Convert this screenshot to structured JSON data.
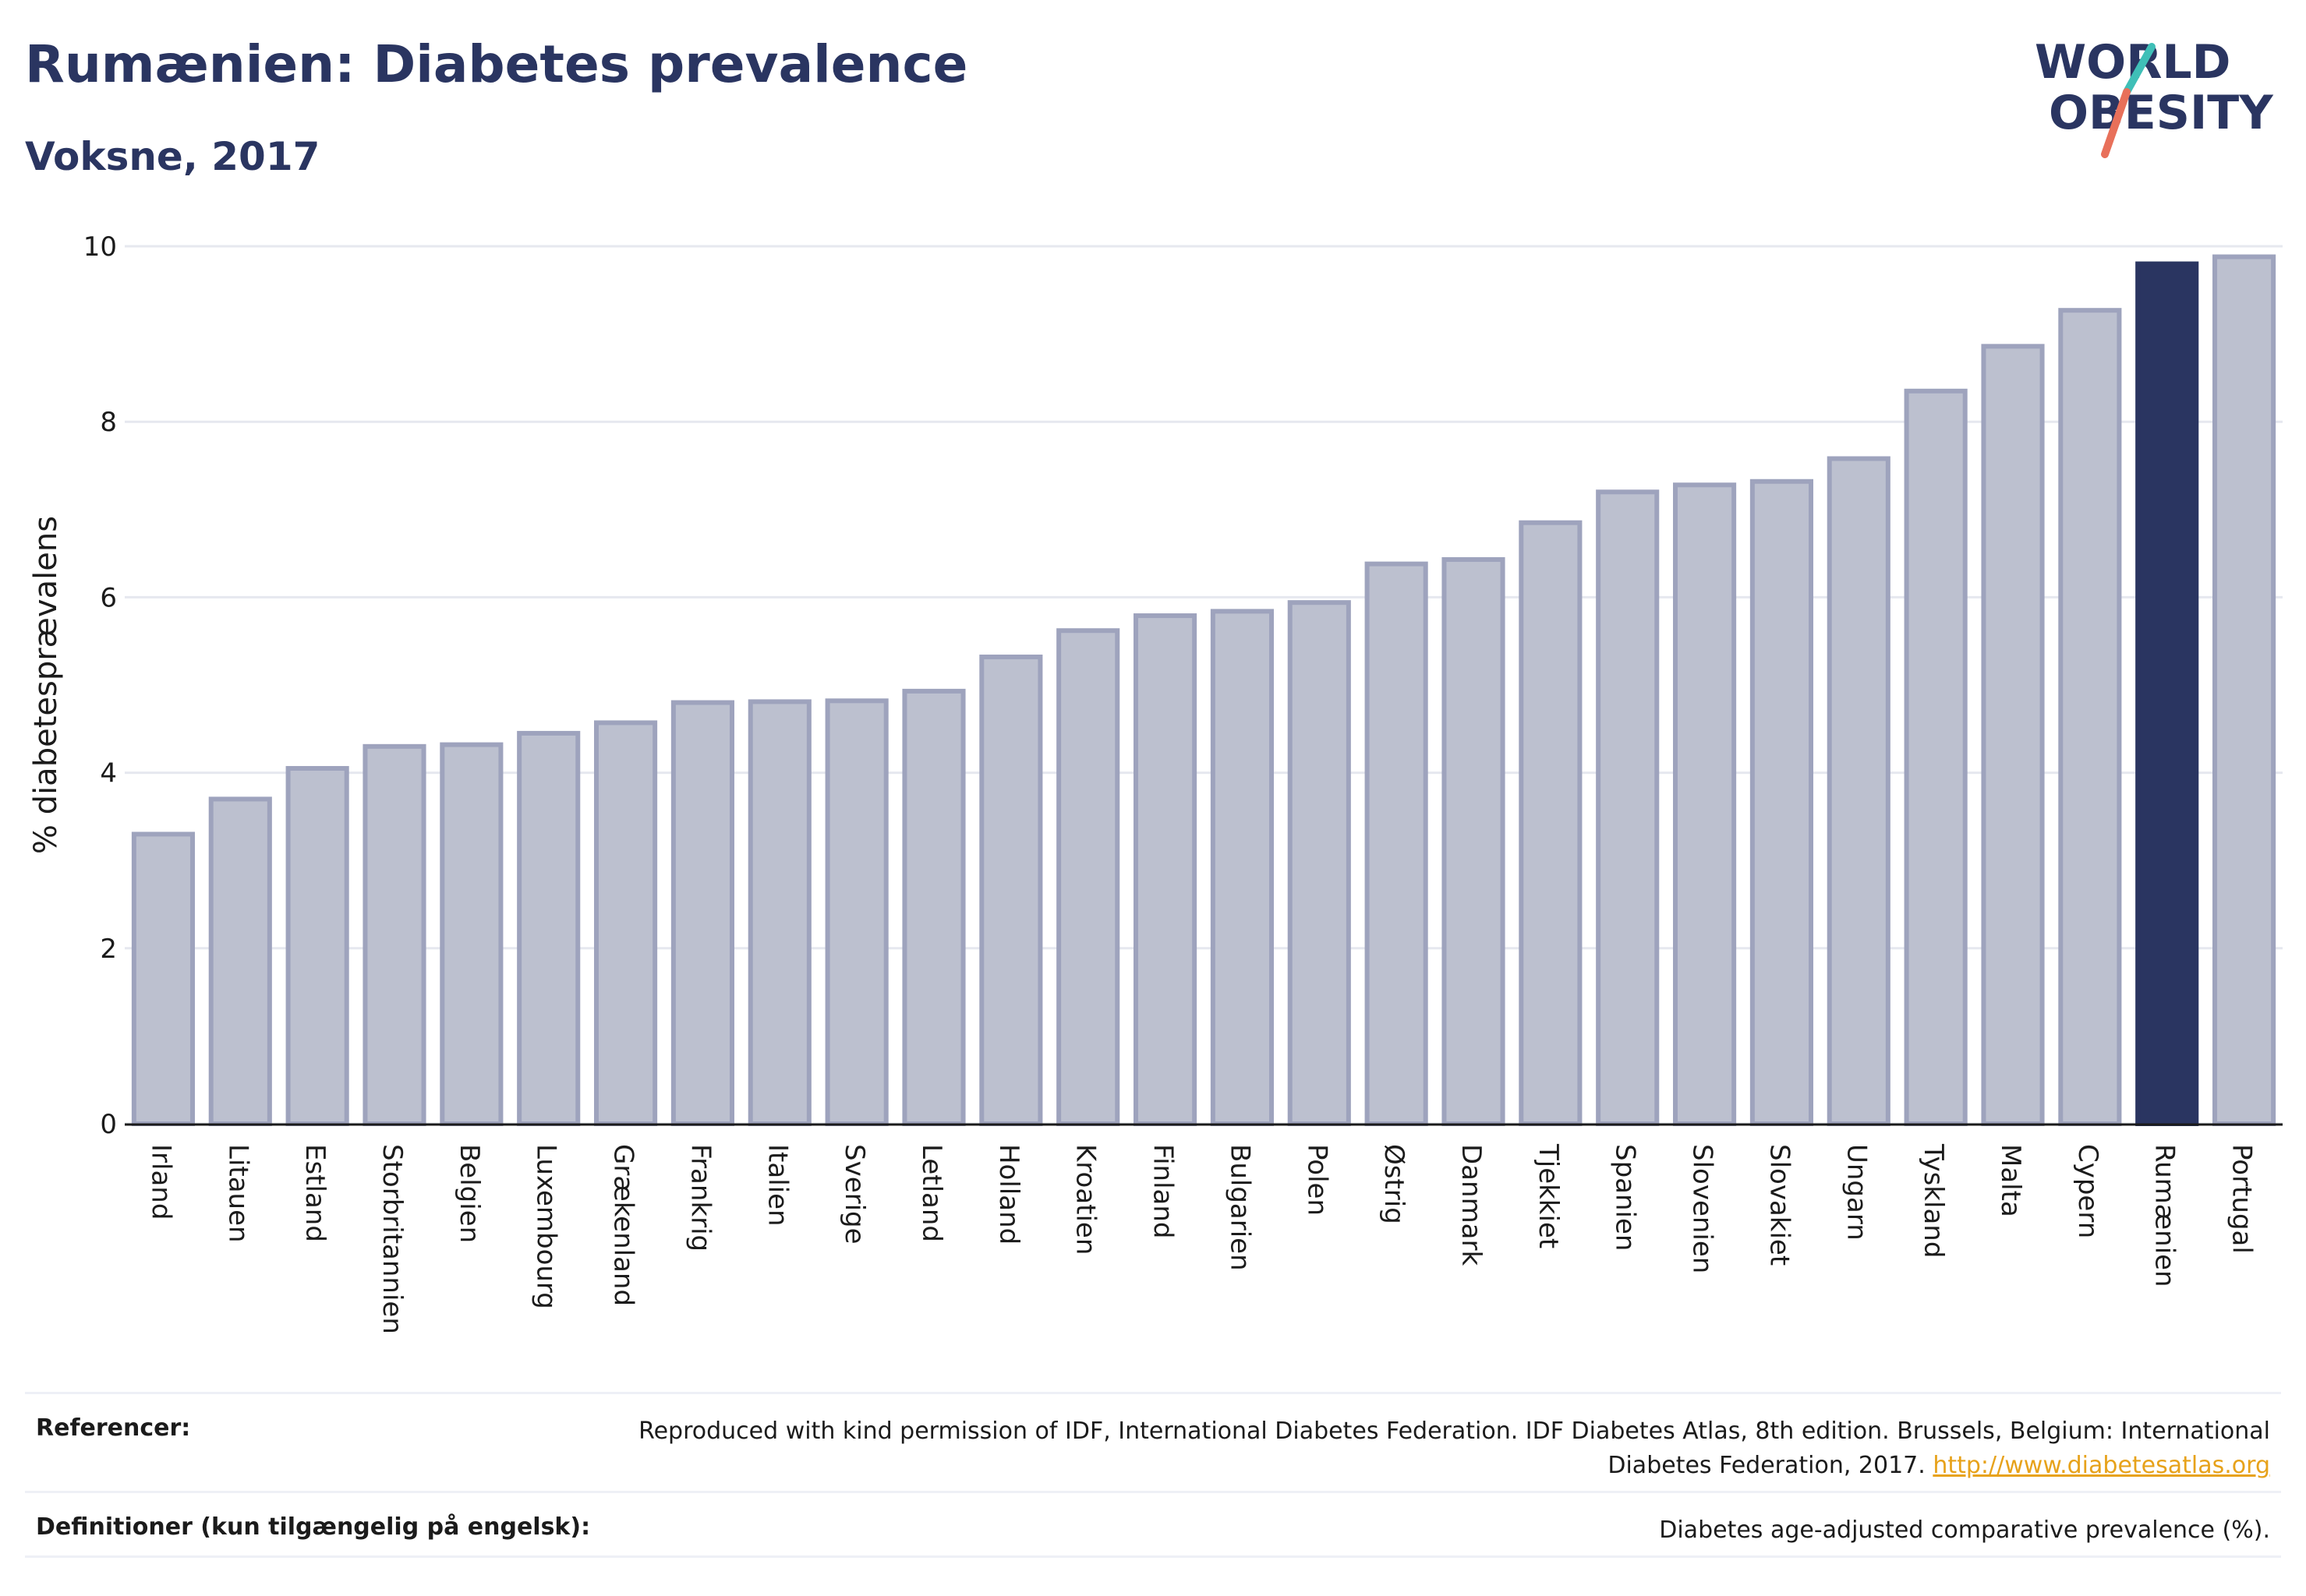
{
  "header": {
    "title": "Rumænien: Diabetes prevalence",
    "subtitle": "Voksne, 2017"
  },
  "logo": {
    "line1": "WORLD",
    "line2": "OBESITY",
    "colors": {
      "text": "#2a3561",
      "slash_teal": "#3fbfb7",
      "slash_coral": "#e8705a"
    }
  },
  "chart_data": {
    "type": "bar",
    "title": "Rumænien: Diabetes prevalence",
    "subtitle": "Voksne, 2017",
    "xlabel": "",
    "ylabel": "% diabetesprævalens",
    "ylim": [
      0,
      10
    ],
    "yticks": [
      0,
      2,
      4,
      6,
      8,
      10
    ],
    "grid": true,
    "highlight": "Rumænien",
    "colors": {
      "bar": "#bcc0cf",
      "bar_edge": "#9ea3bd",
      "highlight": "#2a3561",
      "grid": "#e6e8ef",
      "axis": "#1b1b1b"
    },
    "categories": [
      "Irland",
      "Litauen",
      "Estland",
      "Storbritannien",
      "Belgien",
      "Luxembourg",
      "Grækenland",
      "Frankrig",
      "Italien",
      "Sverige",
      "Letland",
      "Holland",
      "Kroatien",
      "Finland",
      "Bulgarien",
      "Polen",
      "Østrig",
      "Danmark",
      "Tjekkiet",
      "Spanien",
      "Slovenien",
      "Slovakiet",
      "Ungarn",
      "Tyskland",
      "Malta",
      "Cypern",
      "Rumænien",
      "Portugal"
    ],
    "values": [
      3.3,
      3.7,
      4.05,
      4.3,
      4.32,
      4.45,
      4.57,
      4.8,
      4.81,
      4.82,
      4.93,
      5.32,
      5.62,
      5.79,
      5.84,
      5.94,
      6.38,
      6.43,
      6.85,
      7.2,
      7.28,
      7.32,
      7.58,
      8.35,
      8.86,
      9.27,
      9.8,
      9.88
    ]
  },
  "references": {
    "label": "Referencer:",
    "text": "Reproduced with kind permission of IDF, International Diabetes Federation. IDF Diabetes Atlas, 8th edition. Brussels, Belgium: International Diabetes Federation, 2017.",
    "link": "http://www.diabetesatlas.org"
  },
  "definitions": {
    "label": "Definitioner (kun tilgængelig på engelsk):",
    "text": "Diabetes age-adjusted comparative prevalence (%)."
  }
}
